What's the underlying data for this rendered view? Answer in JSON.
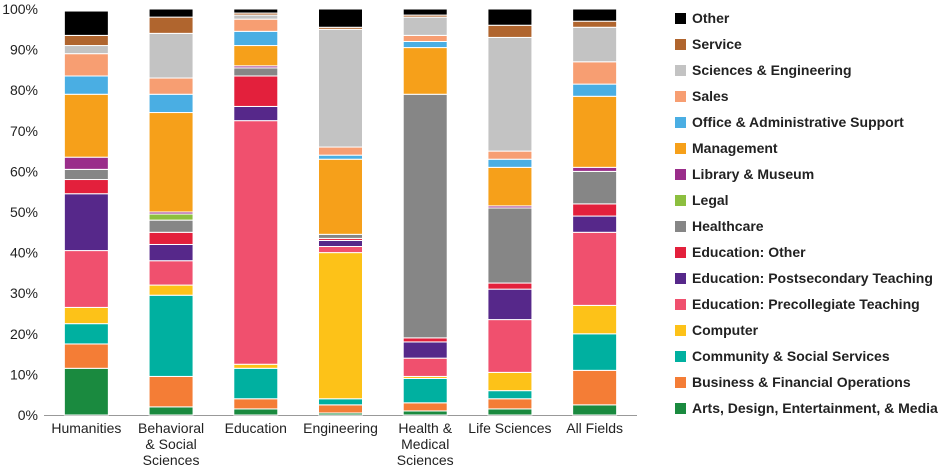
{
  "chart_data": {
    "type": "bar",
    "stacked": true,
    "percent": true,
    "title": "",
    "xlabel": "",
    "ylabel": "",
    "ylim": [
      0,
      100
    ],
    "yticks": [
      "0%",
      "10%",
      "20%",
      "30%",
      "40%",
      "50%",
      "60%",
      "70%",
      "80%",
      "90%",
      "100%"
    ],
    "legend_position": "right",
    "categories": [
      [
        "Humanities"
      ],
      [
        "Behavioral",
        "& Social",
        "Sciences"
      ],
      [
        "Education"
      ],
      [
        "Engineering"
      ],
      [
        "Health &",
        "Medical",
        "Sciences"
      ],
      [
        "Life Sciences"
      ],
      [
        "All Fields"
      ]
    ],
    "series": [
      {
        "name": "Arts, Design, Entertainment, & Media",
        "color": "#1a8a3f",
        "values": [
          11.5,
          2.0,
          1.5,
          0.5,
          1.0,
          1.5,
          2.5
        ]
      },
      {
        "name": "Business & Financial Operations",
        "color": "#f47d36",
        "values": [
          6.0,
          7.5,
          2.5,
          2.0,
          2.0,
          2.5,
          8.5
        ]
      },
      {
        "name": "Community & Social Services",
        "color": "#00b0a0",
        "values": [
          5.0,
          20.0,
          7.5,
          1.5,
          6.0,
          2.0,
          9.0
        ]
      },
      {
        "name": "Computer",
        "color": "#fdc218",
        "values": [
          4.0,
          2.5,
          1.0,
          36.0,
          0.5,
          4.5,
          7.0
        ]
      },
      {
        "name": "Education: Precollegiate Teaching",
        "color": "#f0506e",
        "values": [
          14.0,
          6.0,
          60.0,
          1.5,
          4.5,
          13.0,
          18.0
        ]
      },
      {
        "name": "Education: Postsecondary Teaching",
        "color": "#56288a",
        "values": [
          14.0,
          4.0,
          3.5,
          1.5,
          4.0,
          7.5,
          4.0
        ]
      },
      {
        "name": "Education: Other",
        "color": "#e3203c",
        "values": [
          3.5,
          3.0,
          7.5,
          0.5,
          1.0,
          1.5,
          3.0
        ]
      },
      {
        "name": "Healthcare",
        "color": "#868686",
        "values": [
          2.5,
          3.0,
          2.0,
          1.0,
          60.0,
          18.5,
          8.0
        ]
      },
      {
        "name": "Legal",
        "color": "#8cbf3f",
        "values": [
          0.0,
          1.5,
          0.0,
          0.0,
          0.0,
          0.0,
          0.0
        ]
      },
      {
        "name": "Library & Museum",
        "color": "#9a2d8a",
        "values": [
          3.0,
          0.5,
          0.5,
          0.0,
          0.0,
          0.5,
          1.0
        ]
      },
      {
        "name": "Management",
        "color": "#f6a01a",
        "values": [
          15.5,
          24.5,
          5.0,
          18.5,
          11.5,
          9.5,
          17.5
        ]
      },
      {
        "name": "Office & Administrative Support",
        "color": "#4aaee3",
        "values": [
          4.5,
          4.5,
          3.5,
          1.0,
          1.5,
          2.0,
          3.0
        ]
      },
      {
        "name": "Sales",
        "color": "#f79e72",
        "values": [
          5.5,
          4.0,
          3.0,
          2.0,
          1.5,
          2.0,
          5.5
        ]
      },
      {
        "name": "Sciences & Engineering",
        "color": "#c3c3c3",
        "values": [
          2.0,
          11.0,
          1.0,
          29.0,
          4.5,
          28.0,
          8.5
        ]
      },
      {
        "name": "Service",
        "color": "#b0652e",
        "values": [
          2.5,
          4.0,
          0.5,
          0.5,
          0.5,
          3.0,
          1.5
        ]
      },
      {
        "name": "Other",
        "color": "#000000",
        "values": [
          6.0,
          2.0,
          1.0,
          4.5,
          1.5,
          4.0,
          3.0
        ]
      }
    ]
  }
}
